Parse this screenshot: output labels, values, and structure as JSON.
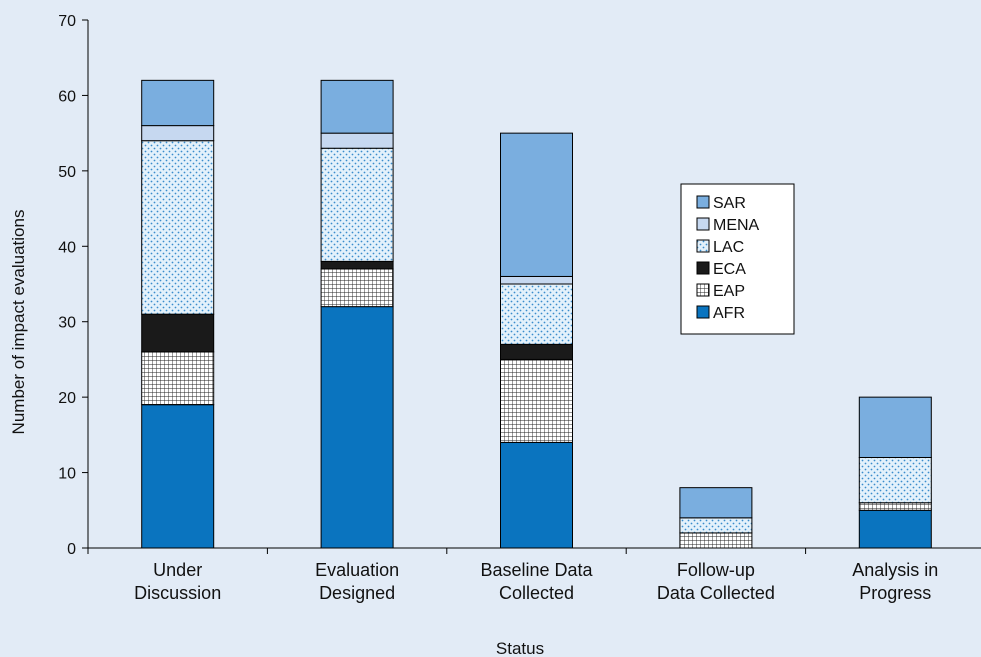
{
  "chart_data": {
    "type": "bar",
    "stacked": true,
    "categories": [
      [
        "Under",
        "Discussion"
      ],
      [
        "Evaluation",
        "Designed"
      ],
      [
        "Baseline Data",
        "Collected"
      ],
      [
        "Follow-up",
        "Data Collected"
      ],
      [
        "Analysis in",
        "Progress"
      ]
    ],
    "series": [
      {
        "name": "AFR",
        "color": "#0a74bf",
        "pattern": "solid",
        "values": [
          19,
          32,
          14,
          0,
          5
        ]
      },
      {
        "name": "EAP",
        "color": "#ffffff",
        "pattern": "grid",
        "values": [
          7,
          5,
          11,
          2,
          1
        ]
      },
      {
        "name": "ECA",
        "color": "#1a1a1a",
        "pattern": "solid",
        "values": [
          5,
          1,
          2,
          0,
          0
        ]
      },
      {
        "name": "LAC",
        "color": "#e3f1fb",
        "pattern": "dots",
        "values": [
          23,
          15,
          8,
          2,
          6
        ]
      },
      {
        "name": "MENA",
        "color": "#c6d8f0",
        "pattern": "solid",
        "values": [
          2,
          2,
          1,
          0,
          0
        ]
      },
      {
        "name": "SAR",
        "color": "#7aaedf",
        "pattern": "solid",
        "values": [
          6,
          7,
          19,
          4,
          8
        ]
      }
    ],
    "ylim": [
      0,
      70
    ],
    "yticks": [
      0,
      10,
      20,
      30,
      40,
      50,
      60,
      70
    ],
    "ylabel": "Number of impact evaluations",
    "xlabel": "Status",
    "legend_order": [
      "SAR",
      "MENA",
      "LAC",
      "ECA",
      "EAP",
      "AFR"
    ],
    "legend_position": "right-middle"
  }
}
